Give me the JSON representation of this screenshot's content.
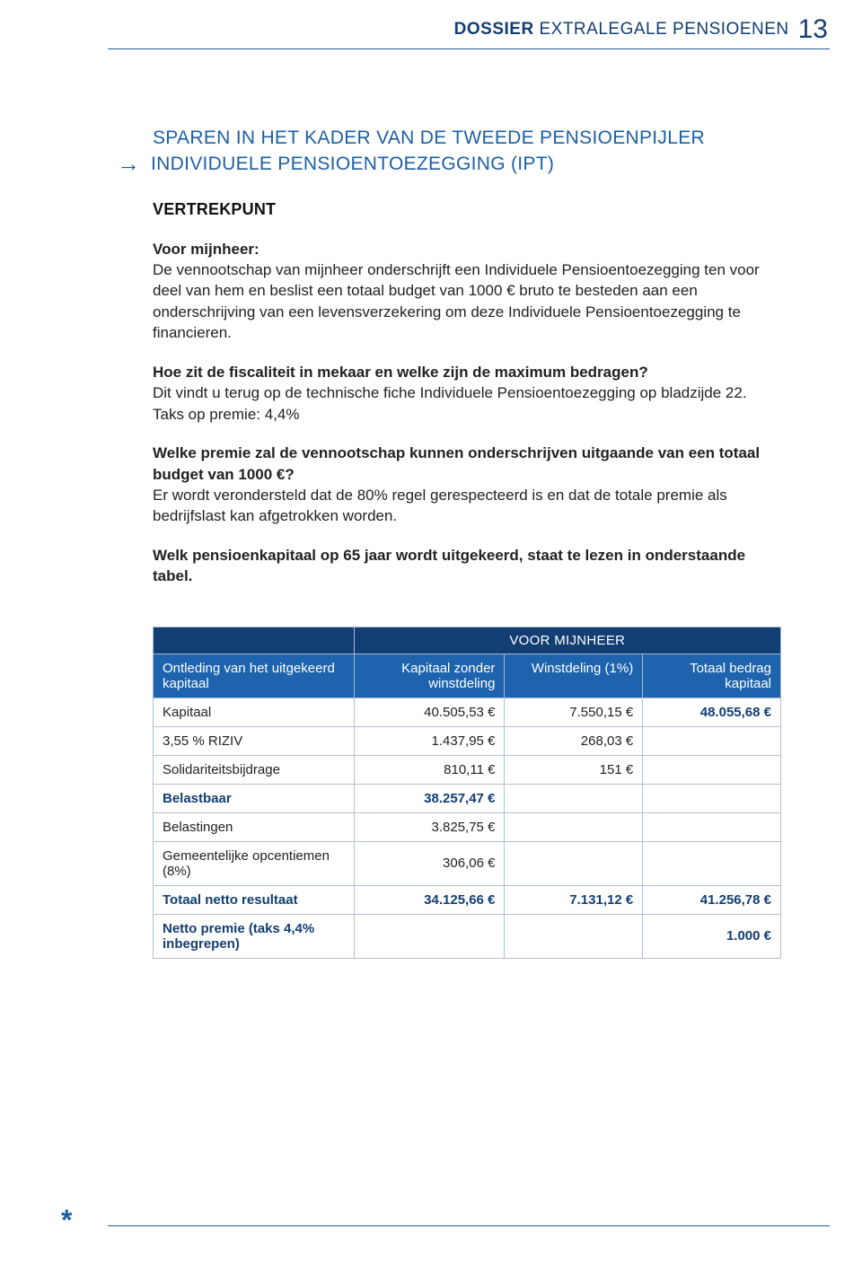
{
  "header": {
    "bold": "DOSSIER",
    "thin": " EXTRALEGALE PENSIOENEN",
    "page_number": "13"
  },
  "title": {
    "line1": "SPAREN IN HET KADER VAN DE TWEEDE PENSIOENPIJLER",
    "line2": "INDIVIDUELE PENSIOENTOEZEGGING (IPT)"
  },
  "vertrekpunt_heading": "VERTREKPUNT",
  "mijnheer_heading": "Voor mijnheer:",
  "mijnheer_body": "De vennootschap van mijnheer onderschrijft een Individuele Pensioentoezegging ten voor deel van hem en beslist een totaal budget van 1000 € bruto te besteden aan een onderschrijving van een levensverzekering om deze Individuele Pensioentoezegging te financieren.",
  "fiscal_heading": "Hoe zit de fiscaliteit in mekaar en welke zijn de maximum bedragen?",
  "fiscal_body_l1": "Dit vindt u terug op de technische fiche Individuele Pensioentoezegging op bladzijde 22.",
  "fiscal_body_l2": "Taks op premie: 4,4%",
  "premie_heading": "Welke premie zal de vennootschap kunnen onderschrijven uitgaande van een totaal budget van 1000 €?",
  "premie_body": "Er wordt verondersteld dat de 80% regel gerespecteerd is en dat de totale premie als bedrijfslast kan afgetrokken worden.",
  "tabel_heading": "Welk pensioenkapitaal op 65 jaar wordt uitgekeerd, staat te lezen in onderstaande tabel.",
  "table": {
    "banner": "VOOR MIJNHEER",
    "columns": [
      "Ontleding van het uitgekeerd kapitaal",
      "Kapitaal zonder winstdeling",
      "Winstdeling (1%)",
      "Totaal bedrag kapitaal"
    ],
    "rows": [
      {
        "label": "Kapitaal",
        "c2": "40.505,53 €",
        "c3": "7.550,15 €",
        "c4": "48.055,68 €",
        "bold_c4": true
      },
      {
        "label": "3,55 % RIZIV",
        "c2": "1.437,95 €",
        "c3": "268,03 €",
        "c4": ""
      },
      {
        "label": "Solidariteitsbijdrage",
        "c2": "810,11 €",
        "c3": "151 €",
        "c4": ""
      },
      {
        "label": "Belastbaar",
        "c2": "38.257,47 €",
        "c3": "",
        "c4": "",
        "boldrow": true
      },
      {
        "label": "Belastingen",
        "c2": "3.825,75 €",
        "c3": "",
        "c4": ""
      },
      {
        "label": "Gemeentelijke opcentiemen (8%)",
        "c2": "306,06 €",
        "c3": "",
        "c4": ""
      },
      {
        "label": "Totaal netto resultaat",
        "c2": "34.125,66 €",
        "c3": "7.131,12 €",
        "c4": "41.256,78 €",
        "boldrow": true
      },
      {
        "label": "Netto premie (taks 4,4% inbegrepen)",
        "c2": "",
        "c3": "",
        "c4": "1.000 €",
        "boldrow": true
      }
    ]
  },
  "asterisk": "*",
  "colors": {
    "primary_dark": "#123e74",
    "primary": "#1d5fa5",
    "subheader_bg": "#1d63ad",
    "rule": "#2a5c99",
    "border": "#b3c0d1"
  }
}
